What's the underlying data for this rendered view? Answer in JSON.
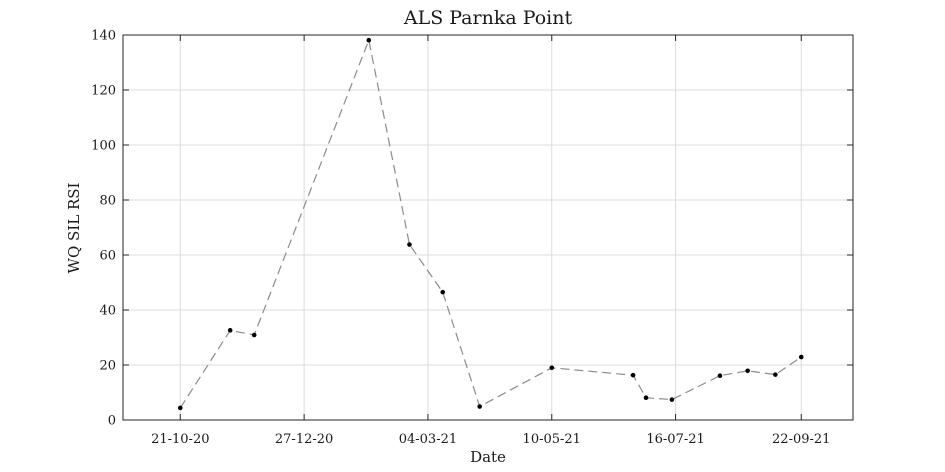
{
  "chart_data": {
    "type": "line",
    "title": "ALS Parnka Point",
    "xlabel": "Date",
    "ylabel": "WQ SIL RSI",
    "xlim": [
      "2020-09-20",
      "2021-10-20"
    ],
    "ylim": [
      0,
      140
    ],
    "x_ticks": [
      {
        "date": "2020-10-21",
        "label": "21-10-20"
      },
      {
        "date": "2020-12-27",
        "label": "27-12-20"
      },
      {
        "date": "2021-03-04",
        "label": "04-03-21"
      },
      {
        "date": "2021-05-10",
        "label": "10-05-21"
      },
      {
        "date": "2021-07-16",
        "label": "16-07-21"
      },
      {
        "date": "2021-09-22",
        "label": "22-09-21"
      }
    ],
    "y_ticks": [
      0,
      20,
      40,
      60,
      80,
      100,
      120,
      140
    ],
    "grid": true,
    "series": [
      {
        "line_style": "dashed",
        "line_color": "#8c8c8c",
        "marker_color": "#000000",
        "x": [
          "2020-10-21",
          "2020-11-17",
          "2020-11-30",
          "2021-01-31",
          "2021-02-22",
          "2021-03-12",
          "2021-04-01",
          "2021-05-10",
          "2021-06-23",
          "2021-06-30",
          "2021-07-14",
          "2021-08-09",
          "2021-08-24",
          "2021-09-08",
          "2021-09-22"
        ],
        "y": [
          4.4,
          32.6,
          30.9,
          138.1,
          63.8,
          46.5,
          4.9,
          19.0,
          16.3,
          8.1,
          7.4,
          16.1,
          17.9,
          16.5,
          22.9
        ]
      }
    ]
  }
}
